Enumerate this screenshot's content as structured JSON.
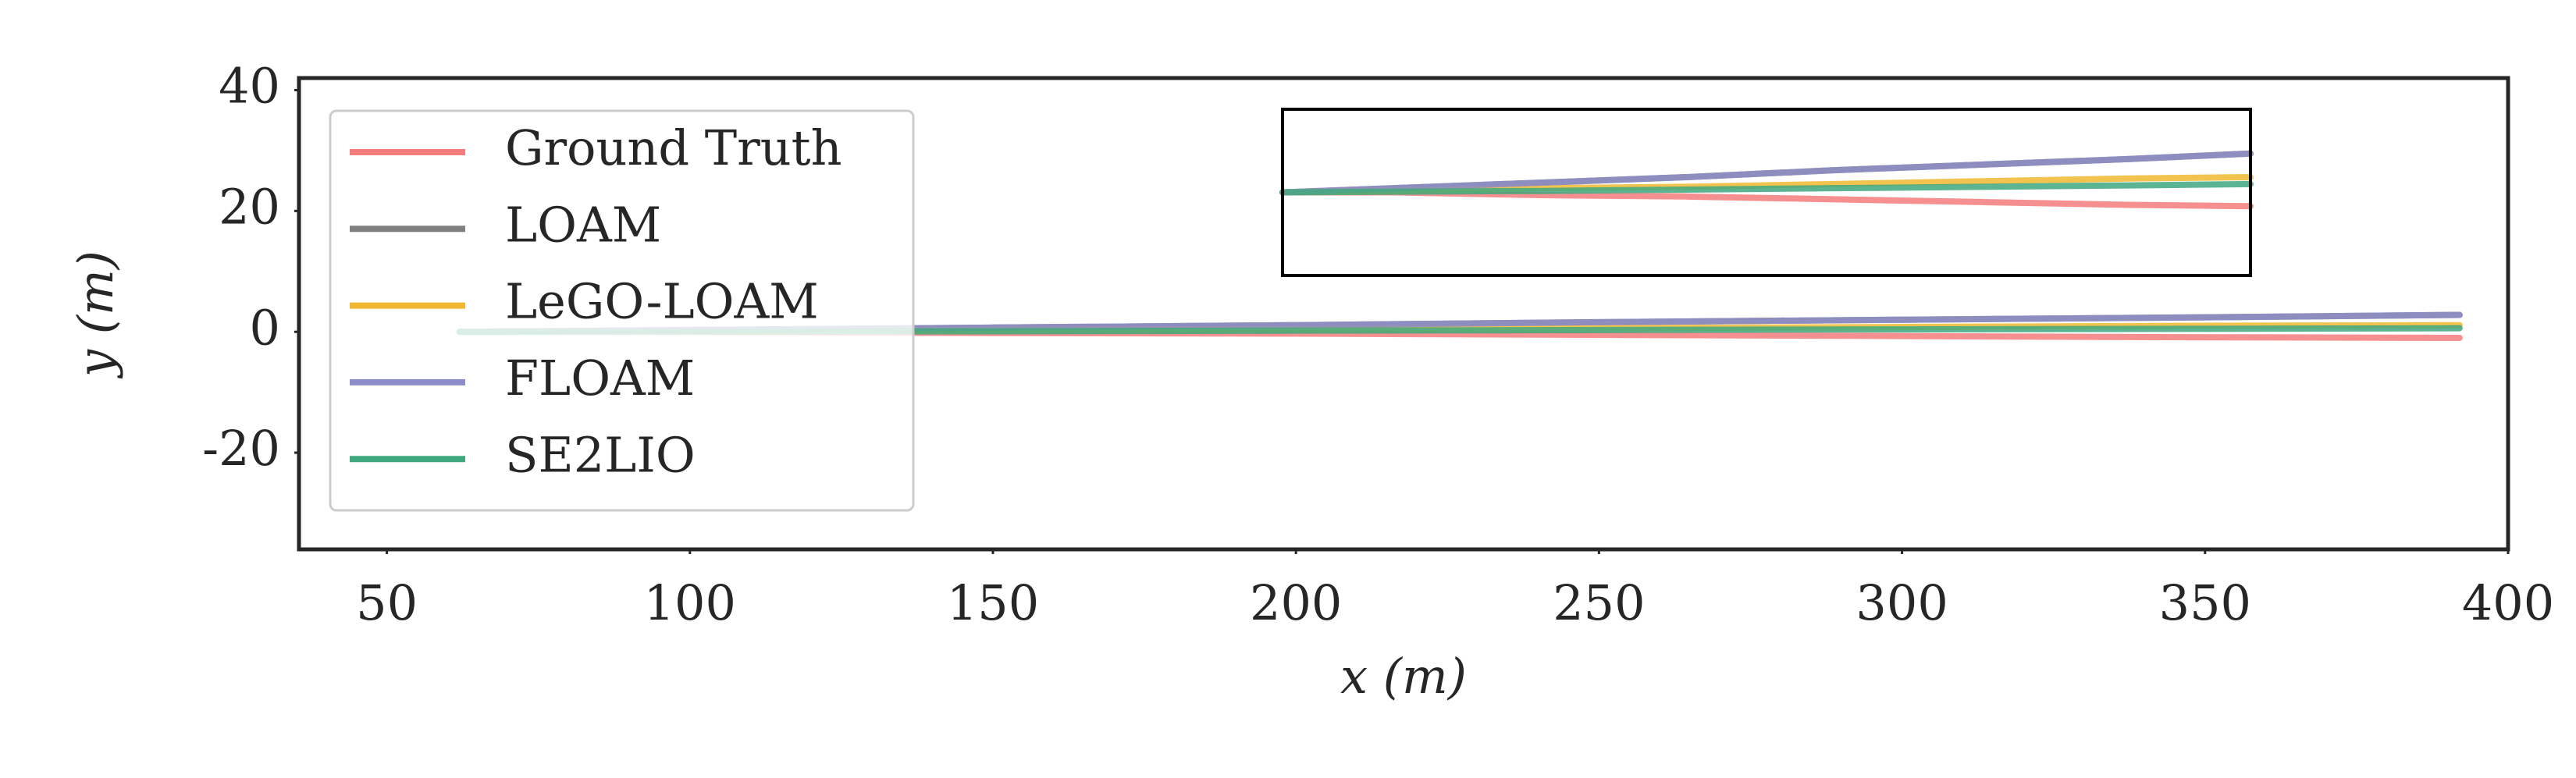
{
  "chart_data": {
    "type": "line",
    "xlabel": "x (m)",
    "ylabel": "y (m)",
    "x": [
      62,
      100,
      150,
      200,
      250,
      300,
      350,
      392
    ],
    "series": [
      {
        "name": "Ground Truth",
        "color": "#f47c7c",
        "values": [
          0,
          0,
          -0.2,
          -0.3,
          -0.5,
          -0.7,
          -0.9,
          -1.0
        ]
      },
      {
        "name": "LOAM",
        "color": "#808080",
        "values": [
          0,
          0.3,
          0.7,
          1.1,
          1.6,
          2.0,
          2.4,
          2.8
        ]
      },
      {
        "name": "LeGO-LOAM",
        "color": "#f0b830",
        "values": [
          0,
          0.1,
          0.3,
          0.4,
          0.6,
          0.8,
          1.0,
          1.1
        ]
      },
      {
        "name": "FLOAM",
        "color": "#8c8cc8",
        "values": [
          0,
          0.3,
          0.7,
          1.1,
          1.6,
          2.0,
          2.4,
          2.8
        ]
      },
      {
        "name": "SE2LIO",
        "color": "#3fa87f",
        "values": [
          0,
          0.05,
          0.1,
          0.2,
          0.3,
          0.4,
          0.5,
          0.6
        ]
      }
    ],
    "xlim": [
      35.5,
      400
    ],
    "ylim": [
      -36,
      42
    ],
    "xticks": [
      50,
      100,
      150,
      200,
      250,
      300,
      350,
      400
    ],
    "yticks": [
      -20,
      0,
      20,
      40
    ],
    "legend": "upper left",
    "inset": {
      "xlim": [
        62,
        392
      ],
      "ylim": [
        -6,
        6
      ]
    }
  }
}
